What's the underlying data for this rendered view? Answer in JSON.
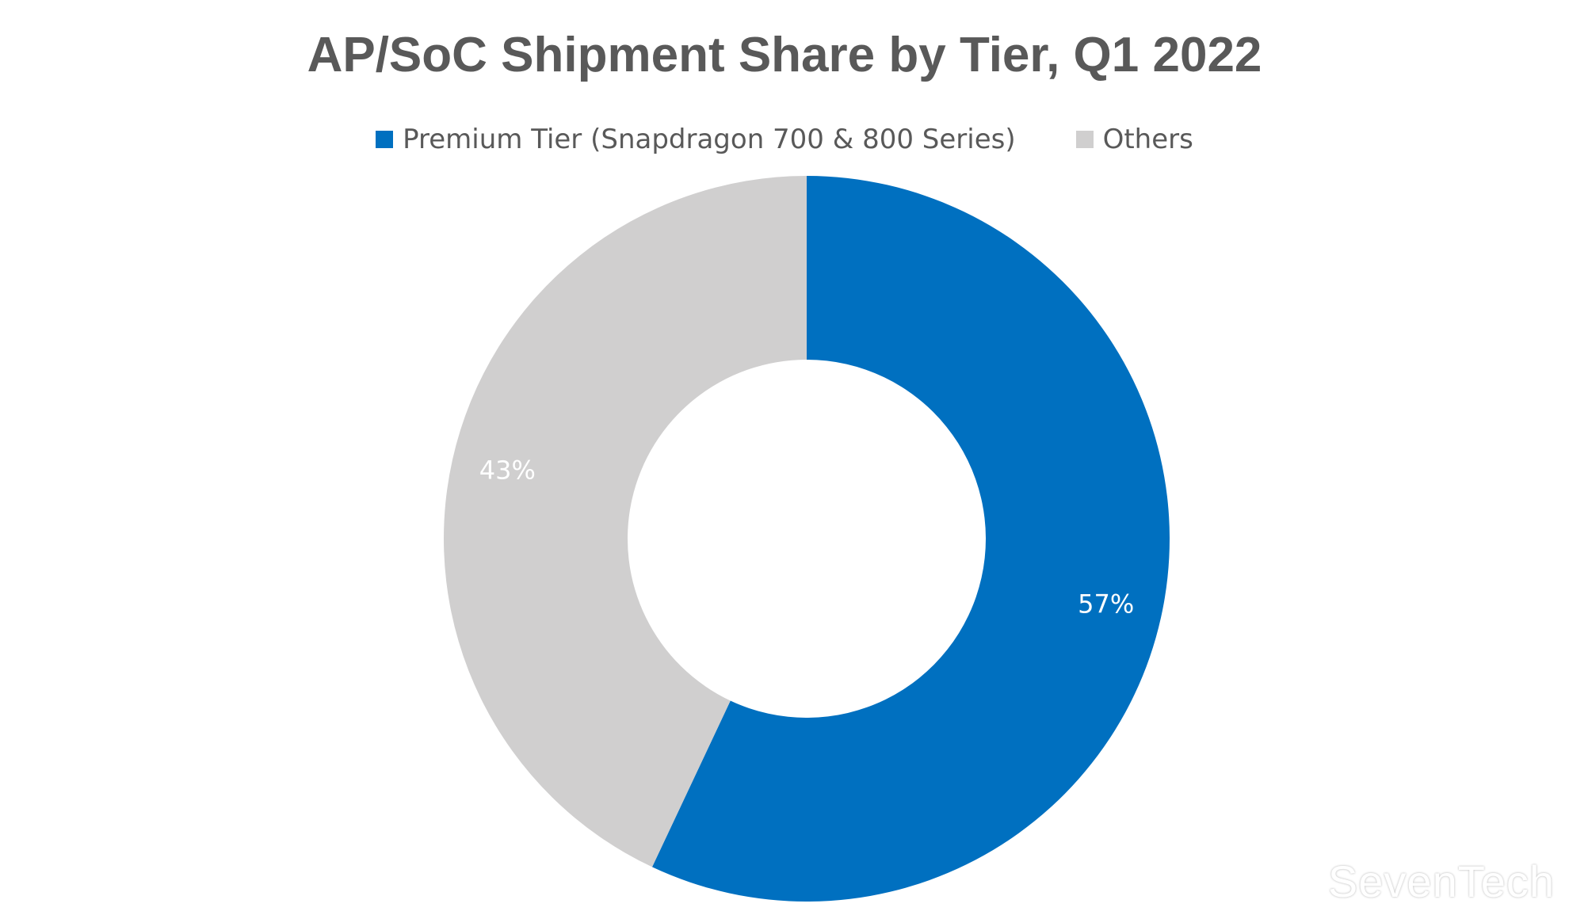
{
  "chart_data": {
    "type": "pie",
    "variant": "donut",
    "title": "AP/SoC Shipment Share by Tier, Q1 2022",
    "legend_position": "top",
    "slices": [
      {
        "name": "Premium Tier (Snapdragon 700 & 800 Series)",
        "value": 57,
        "label": "57%",
        "color": "#0070C0"
      },
      {
        "name": "Others",
        "value": 43,
        "label": "43%",
        "color": "#D0CFCF"
      }
    ]
  },
  "watermark": "SevenTech"
}
